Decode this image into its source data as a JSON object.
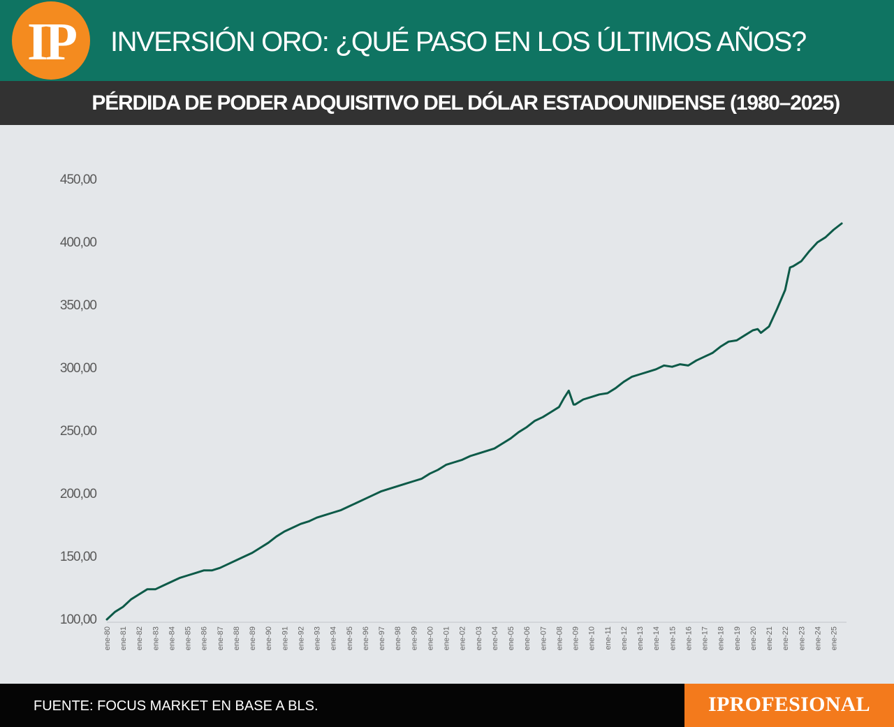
{
  "header": {
    "logo_text": "IP",
    "title": "INVERSIÓN ORO: ¿QUÉ PASO EN LOS ÚLTIMOS AÑOS?",
    "subtitle": "PÉRDIDA DE PODER ADQUISITIVO DEL DÓLAR ESTADOUNIDENSE (1980–2025)"
  },
  "footer": {
    "source": "FUENTE: FOCUS MARKET EN BASE A BLS.",
    "brand": "IPROFESIONAL"
  },
  "colors": {
    "header_bg": "#0f7462",
    "logo_bg": "#f48b1f",
    "subheader_bg": "#323232",
    "chart_bg": "#e4e7ea",
    "line": "#0d5a48",
    "footer_bg": "#050505",
    "brand_bg": "#f37a1c"
  },
  "chart_data": {
    "type": "line",
    "title": "PÉRDIDA DE PODER ADQUISITIVO DEL DÓLAR ESTADOUNIDENSE (1980–2025)",
    "xlabel": "",
    "ylabel": "",
    "ylim": [
      100,
      450
    ],
    "y_ticks": [
      "100,00",
      "150,00",
      "200,00",
      "250,00",
      "300,00",
      "350,00",
      "400,00",
      "450,00"
    ],
    "grid": false,
    "legend": "none",
    "x_tick_labels": [
      "ene-80",
      "ene-81",
      "ene-82",
      "ene-83",
      "ene-84",
      "ene-85",
      "ene-86",
      "ene-87",
      "ene-88",
      "ene-89",
      "ene-90",
      "ene-91",
      "ene-92",
      "ene-93",
      "ene-94",
      "ene-95",
      "ene-96",
      "ene-97",
      "ene-98",
      "ene-99",
      "ene-00",
      "ene-01",
      "ene-02",
      "ene-03",
      "ene-04",
      "ene-05",
      "ene-06",
      "ene-07",
      "ene-08",
      "ene-09",
      "ene-10",
      "ene-11",
      "ene-12",
      "ene-13",
      "ene-14",
      "ene-15",
      "ene-16",
      "ene-17",
      "ene-18",
      "ene-19",
      "ene-20",
      "ene-21",
      "ene-22",
      "ene-23",
      "ene-24",
      "ene-25"
    ],
    "series": [
      {
        "x": [
          1980,
          1980.5,
          1981,
          1981.5,
          1982,
          1982.5,
          1983,
          1983.5,
          1984,
          1984.5,
          1985,
          1985.5,
          1986,
          1986.5,
          1987,
          1987.5,
          1988,
          1988.5,
          1989,
          1989.5,
          1990,
          1990.5,
          1991,
          1991.5,
          1992,
          1992.5,
          1993,
          1993.5,
          1994,
          1994.5,
          1995,
          1995.5,
          1996,
          1996.5,
          1997,
          1997.5,
          1998,
          1998.5,
          1999,
          1999.5,
          2000,
          2000.5,
          2001,
          2001.5,
          2002,
          2002.5,
          2003,
          2003.5,
          2004,
          2004.5,
          2005,
          2005.5,
          2006,
          2006.5,
          2007,
          2007.5,
          2008,
          2008.3,
          2008.6,
          2008.9,
          2009,
          2009.5,
          2010,
          2010.5,
          2011,
          2011.5,
          2012,
          2012.5,
          2013,
          2013.5,
          2014,
          2014.5,
          2015,
          2015.5,
          2016,
          2016.5,
          2017,
          2017.5,
          2018,
          2018.5,
          2019,
          2019.5,
          2020,
          2020.3,
          2020.5,
          2021,
          2021.5,
          2022,
          2022.3,
          2022.5,
          2023,
          2023.5,
          2024,
          2024.5,
          2025,
          2025.5
        ],
        "values": [
          100,
          106,
          110,
          116,
          120,
          124,
          124,
          127,
          130,
          133,
          135,
          137,
          139,
          139,
          141,
          144,
          147,
          150,
          153,
          157,
          161,
          166,
          170,
          173,
          176,
          178,
          181,
          183,
          185,
          187,
          190,
          193,
          196,
          199,
          202,
          204,
          206,
          208,
          210,
          212,
          216,
          219,
          223,
          225,
          227,
          230,
          232,
          234,
          236,
          240,
          244,
          249,
          253,
          258,
          261,
          265,
          269,
          276,
          282,
          271,
          271,
          275,
          277,
          279,
          280,
          284,
          289,
          293,
          295,
          297,
          299,
          302,
          301,
          303,
          302,
          306,
          309,
          312,
          317,
          321,
          322,
          326,
          330,
          331,
          328,
          333,
          347,
          362,
          380,
          381,
          385,
          393,
          400,
          404,
          410,
          415
        ]
      }
    ]
  }
}
